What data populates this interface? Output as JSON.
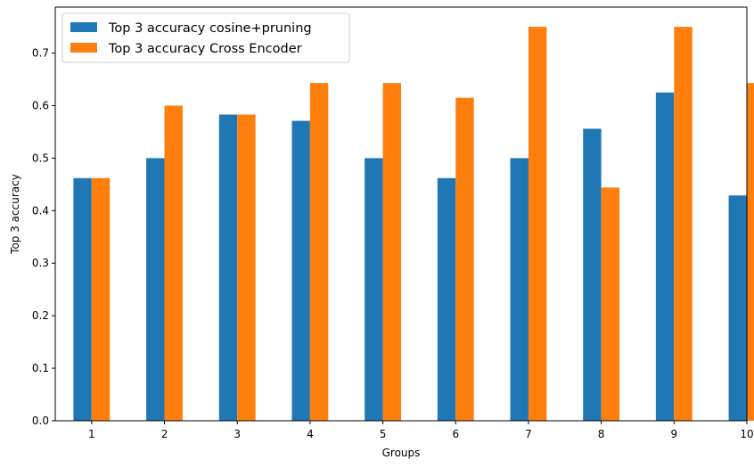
{
  "chart_data": {
    "type": "bar",
    "title": "",
    "xlabel": "Groups",
    "ylabel": "Top 3 accuracy",
    "categories": [
      "1",
      "2",
      "3",
      "4",
      "5",
      "6",
      "7",
      "8",
      "9",
      "10"
    ],
    "ylim": [
      0,
      0.7875
    ],
    "yticks": [
      "0.0",
      "0.1",
      "0.2",
      "0.3",
      "0.4",
      "0.5",
      "0.6",
      "0.7"
    ],
    "grid": false,
    "legend_position": "top-left",
    "series": [
      {
        "name": "Top 3 accuracy cosine+pruning",
        "color": "#1f77b4",
        "values": [
          0.462,
          0.5,
          0.583,
          0.571,
          0.5,
          0.462,
          0.5,
          0.556,
          0.625,
          0.429
        ]
      },
      {
        "name": "Top 3 accuracy Cross Encoder",
        "color": "#ff7f0e",
        "values": [
          0.462,
          0.6,
          0.583,
          0.643,
          0.643,
          0.615,
          0.75,
          0.444,
          0.75,
          0.643
        ]
      }
    ]
  }
}
